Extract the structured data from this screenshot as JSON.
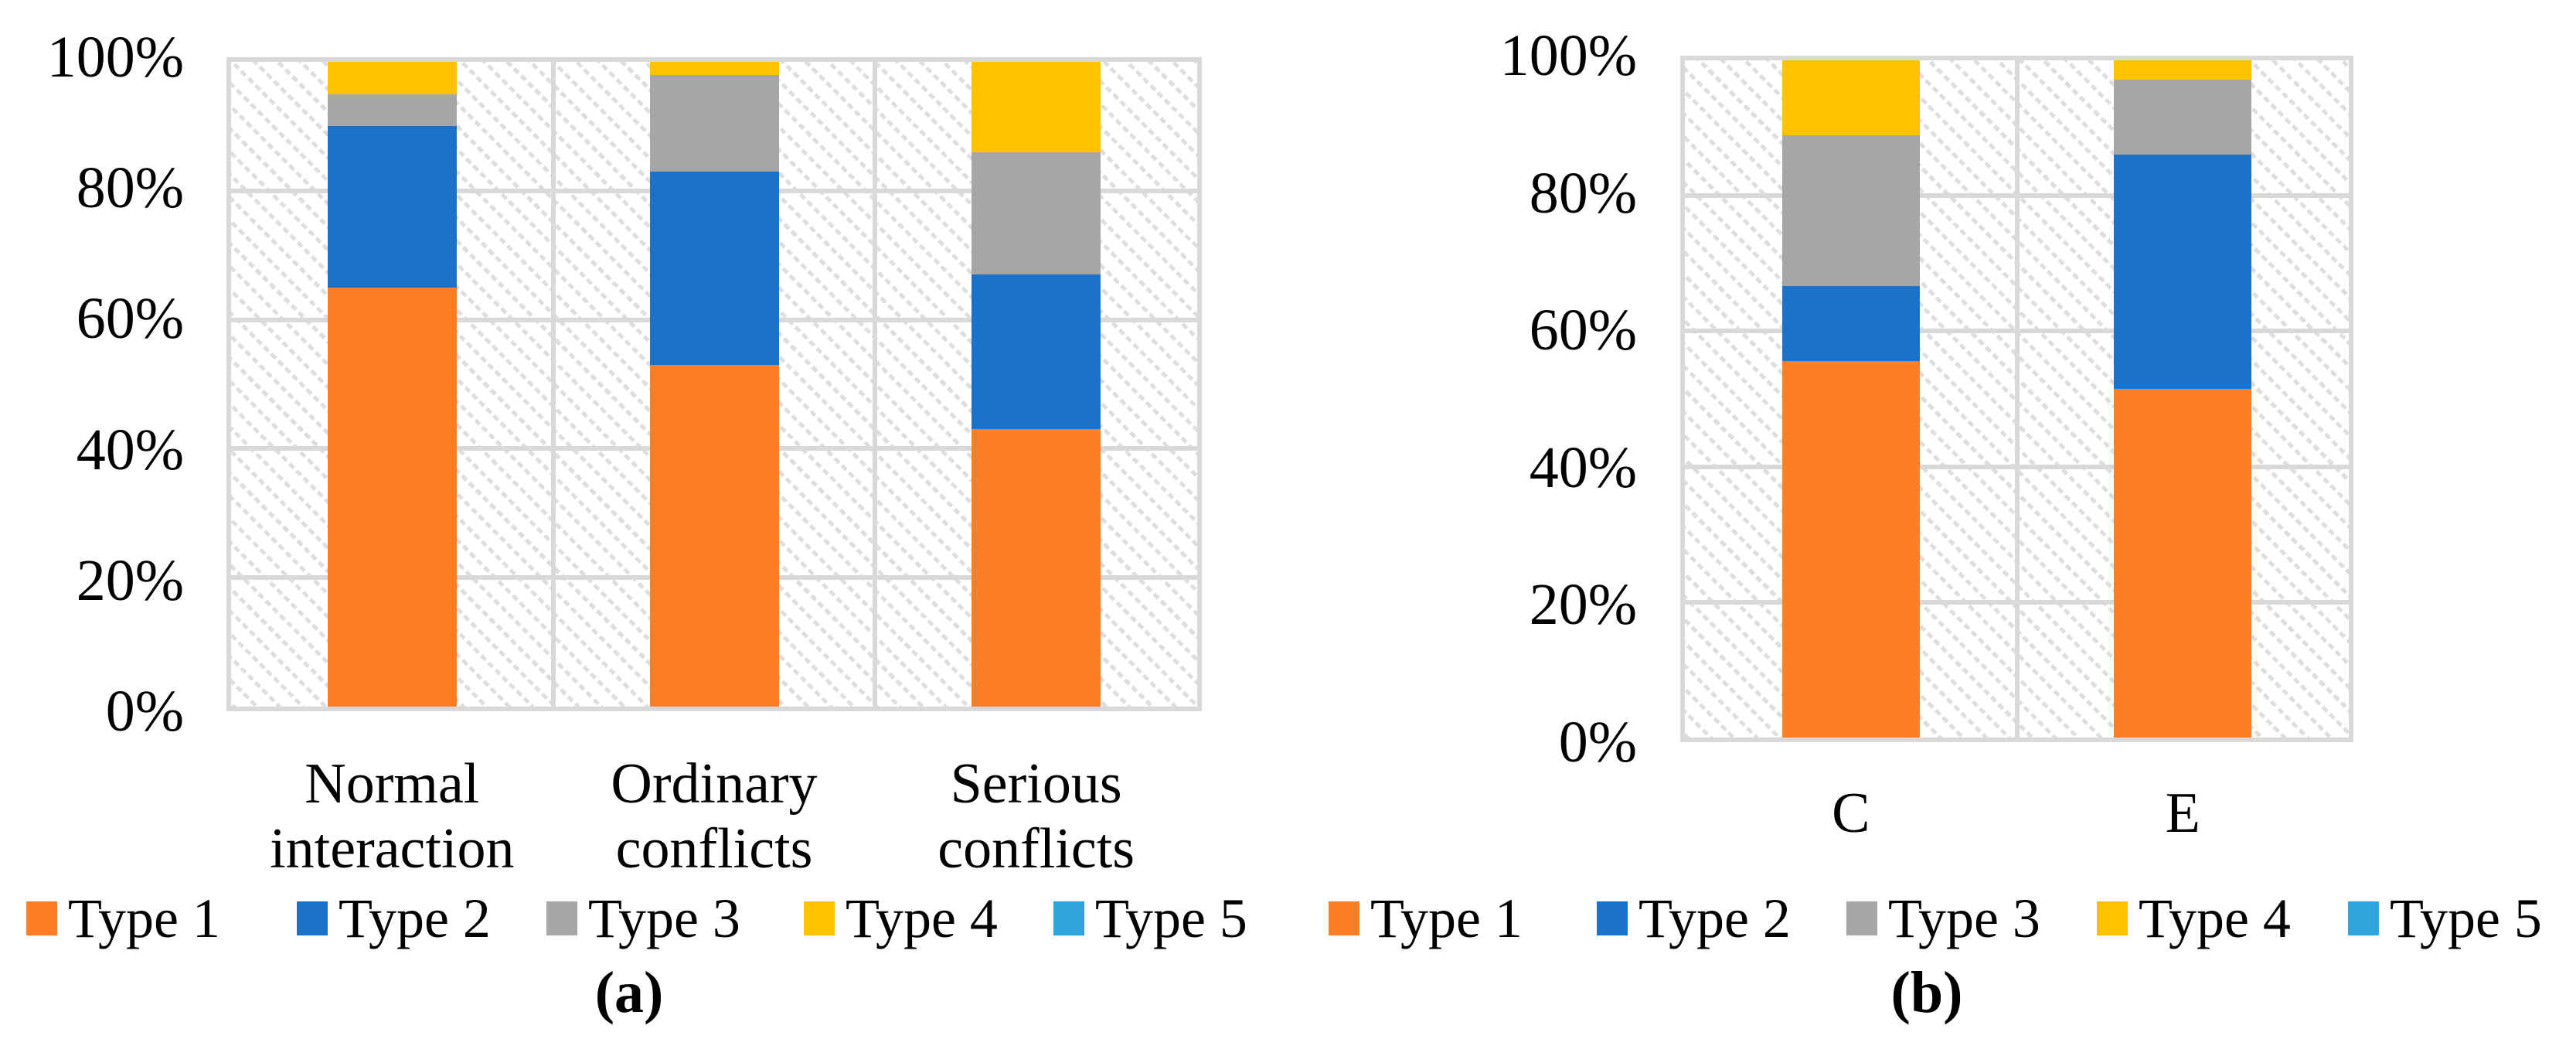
{
  "figure": {
    "background": "#ffffff",
    "grid_color": "#d9d9d9",
    "text_color": "#000000"
  },
  "legend": [
    {
      "label": "Type 1",
      "color": "#FC7E26"
    },
    {
      "label": "Type 2",
      "color": "#1B72C8"
    },
    {
      "label": "Type 3",
      "color": "#A6A6A6"
    },
    {
      "label": "Type 4",
      "color": "#FFC100"
    },
    {
      "label": "Type 5",
      "color": "#2EA3DC"
    }
  ],
  "chart_data": [
    {
      "id": "a",
      "type": "bar",
      "stacked": true,
      "title": "",
      "caption": "(a)",
      "categories": [
        "Normal interaction",
        "Ordinary conflicts",
        "Serious conflicts"
      ],
      "category_label_lines": [
        [
          "Normal",
          "interaction"
        ],
        [
          "Ordinary",
          "conflicts"
        ],
        [
          "Serious",
          "conflicts"
        ]
      ],
      "series": [
        {
          "name": "Type 1",
          "color": "#FC7E26",
          "values": [
            65,
            53,
            43
          ]
        },
        {
          "name": "Type 2",
          "color": "#1B72C8",
          "values": [
            25,
            30,
            24
          ]
        },
        {
          "name": "Type 3",
          "color": "#A6A6A6",
          "values": [
            5,
            15,
            19
          ]
        },
        {
          "name": "Type 4",
          "color": "#FFC100",
          "values": [
            5,
            2,
            14
          ]
        },
        {
          "name": "Type 5",
          "color": "#2EA3DC",
          "values": [
            0,
            0,
            0
          ]
        }
      ],
      "y_ticks": [
        "0%",
        "20%",
        "40%",
        "60%",
        "80%",
        "100%"
      ],
      "ylim": [
        0,
        100
      ],
      "ylabel": "",
      "xlabel": "",
      "grid": true,
      "legend_position": "bottom",
      "plot_background": "diagonal-hatch"
    },
    {
      "id": "b",
      "type": "bar",
      "stacked": true,
      "title": "",
      "caption": "(b)",
      "categories": [
        "C",
        "E"
      ],
      "category_label_lines": [
        [
          "C"
        ],
        [
          "E"
        ]
      ],
      "series": [
        {
          "name": "Type 1",
          "color": "#FC7E26",
          "values": [
            55.6,
            51.5
          ]
        },
        {
          "name": "Type 2",
          "color": "#1B72C8",
          "values": [
            11.1,
            34.6
          ]
        },
        {
          "name": "Type 3",
          "color": "#A6A6A6",
          "values": [
            22.2,
            11.1
          ]
        },
        {
          "name": "Type 4",
          "color": "#FFC100",
          "values": [
            11.1,
            2.8
          ]
        },
        {
          "name": "Type 5",
          "color": "#2EA3DC",
          "values": [
            0,
            0
          ]
        }
      ],
      "y_ticks": [
        "0%",
        "20%",
        "40%",
        "60%",
        "80%",
        "100%"
      ],
      "ylim": [
        0,
        100
      ],
      "ylabel": "",
      "xlabel": "",
      "grid": true,
      "legend_position": "bottom",
      "plot_background": "diagonal-hatch"
    }
  ]
}
